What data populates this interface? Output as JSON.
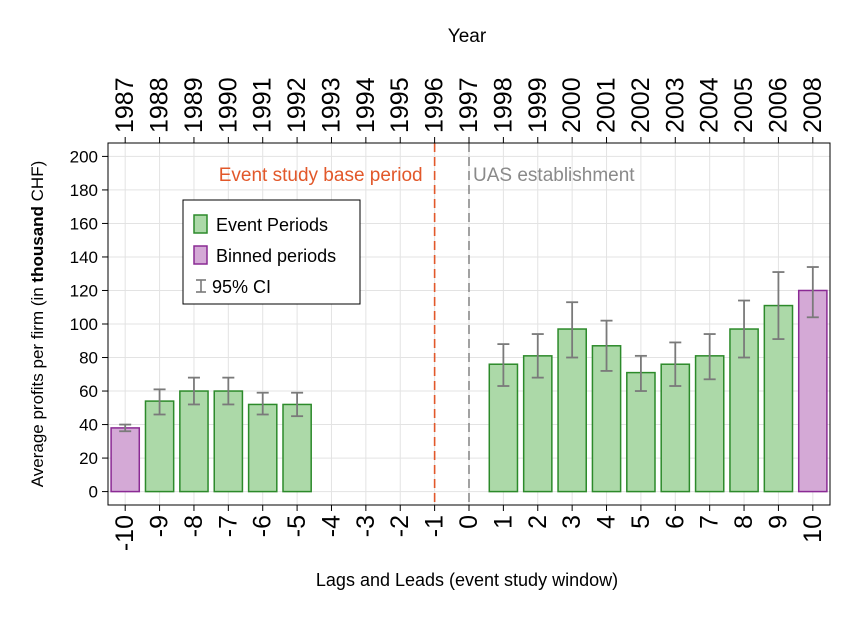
{
  "chart_data": {
    "type": "bar",
    "xlabel": "Lags and Leads (event study window)",
    "ylabel_parts": [
      "Average profits per firm (in ",
      "thousand",
      " CHF)"
    ],
    "top_axis_title": "Year",
    "yticks": [
      0,
      20,
      40,
      60,
      80,
      100,
      120,
      140,
      160,
      180,
      200
    ],
    "ylim": [
      -8,
      208
    ],
    "xlim": [
      -10.5,
      10.5
    ],
    "grid": true,
    "x": [
      -10,
      -9,
      -8,
      -7,
      -6,
      -5,
      -4,
      -3,
      -2,
      -1,
      0,
      1,
      2,
      3,
      4,
      5,
      6,
      7,
      8,
      9,
      10
    ],
    "years": [
      "1987",
      "1988",
      "1989",
      "1990",
      "1991",
      "1992",
      "1993",
      "1994",
      "1995",
      "1996",
      "1997",
      "1998",
      "1999",
      "2000",
      "2001",
      "2002",
      "2003",
      "2004",
      "2005",
      "2006",
      "2008"
    ],
    "bars": [
      {
        "x": -10,
        "value": 38,
        "ci": [
          36,
          40
        ],
        "group": "binned"
      },
      {
        "x": -9,
        "value": 54,
        "ci": [
          46,
          61
        ],
        "group": "event"
      },
      {
        "x": -8,
        "value": 60,
        "ci": [
          52,
          68
        ],
        "group": "event"
      },
      {
        "x": -7,
        "value": 60,
        "ci": [
          52,
          68
        ],
        "group": "event"
      },
      {
        "x": -6,
        "value": 52,
        "ci": [
          46,
          59
        ],
        "group": "event"
      },
      {
        "x": -5,
        "value": 52,
        "ci": [
          45,
          59
        ],
        "group": "event"
      },
      {
        "x": 1,
        "value": 76,
        "ci": [
          63,
          88
        ],
        "group": "event"
      },
      {
        "x": 2,
        "value": 81,
        "ci": [
          68,
          94
        ],
        "group": "event"
      },
      {
        "x": 3,
        "value": 97,
        "ci": [
          80,
          113
        ],
        "group": "event"
      },
      {
        "x": 4,
        "value": 87,
        "ci": [
          72,
          102
        ],
        "group": "event"
      },
      {
        "x": 5,
        "value": 71,
        "ci": [
          60,
          81
        ],
        "group": "event"
      },
      {
        "x": 6,
        "value": 76,
        "ci": [
          63,
          89
        ],
        "group": "event"
      },
      {
        "x": 7,
        "value": 81,
        "ci": [
          67,
          94
        ],
        "group": "event"
      },
      {
        "x": 8,
        "value": 97,
        "ci": [
          80,
          114
        ],
        "group": "event"
      },
      {
        "x": 9,
        "value": 111,
        "ci": [
          91,
          131
        ],
        "group": "event"
      },
      {
        "x": 10,
        "value": 120,
        "ci": [
          104,
          134
        ],
        "group": "binned"
      }
    ],
    "vlines": [
      {
        "x": -1,
        "label": "Event study base period",
        "color": "#e2582a",
        "label_side": "left"
      },
      {
        "x": 0,
        "label": "UAS establishment",
        "color": "#8a8a8a",
        "label_side": "right"
      }
    ],
    "legend": {
      "placement": "upper-left",
      "entries": [
        {
          "label": "Event Periods",
          "kind": "event"
        },
        {
          "label": "Binned periods",
          "kind": "binned"
        },
        {
          "label": "95% CI",
          "kind": "ci"
        }
      ]
    },
    "colors": {
      "event_fill": "#acd9a8",
      "event_stroke": "#2c8a2a",
      "binned_fill": "#d4a9d6",
      "binned_stroke": "#8a2a94",
      "ci": "#7a7a7a",
      "grid": "#e3e3e3"
    }
  }
}
